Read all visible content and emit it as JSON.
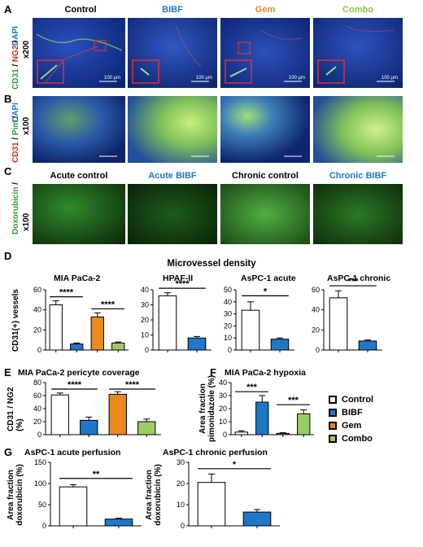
{
  "panels": {
    "A": "A",
    "B": "B",
    "C": "C",
    "D": "D",
    "E": "E",
    "F": "F",
    "G": "G"
  },
  "row_a": {
    "columns": [
      "Control",
      "BIBF",
      "Gem",
      "Combo"
    ],
    "column_colors": [
      "#000000",
      "#1f77c8",
      "#e8891e",
      "#8cc63f"
    ],
    "stain": [
      "CD31",
      "/",
      "NG2",
      "/",
      "DAPI",
      "x200"
    ],
    "scale_bars": [
      "100 μm",
      "100 μm",
      "100 μm",
      "100 μm"
    ]
  },
  "row_b": {
    "stain": [
      "CD31",
      "/",
      "Pim",
      "/",
      "DAPI",
      "x100"
    ]
  },
  "row_c": {
    "columns": [
      "Acute control",
      "Acute BIBF",
      "Chronic control",
      "Chronic BIBF"
    ],
    "column_colors": [
      "#000000",
      "#1f77c8",
      "#000000",
      "#1f77c8"
    ],
    "stain": [
      "Doxorubicin",
      "/",
      "x100"
    ]
  },
  "panel_d": {
    "title": "Microvessel density",
    "ylabel": "CD31(+) vessels"
  },
  "legend": {
    "items": [
      {
        "label": "Control",
        "color": "#ffffff"
      },
      {
        "label": "BIBF",
        "color": "#1f77c8"
      },
      {
        "label": "Gem",
        "color": "#e8891e"
      },
      {
        "label": "Combo",
        "color": "#9ccc65"
      }
    ]
  },
  "chart_data": [
    {
      "id": "d1",
      "type": "bar",
      "title": "MIA PaCa-2",
      "ylabel": "CD31(+) vessels",
      "categories": [
        "Control",
        "BIBF",
        "Gem",
        "Combo"
      ],
      "values": [
        45,
        6,
        33,
        7
      ],
      "errors": [
        4,
        1,
        4,
        1
      ],
      "ylim": [
        0,
        60
      ],
      "yticks": [
        0,
        20,
        40,
        60
      ],
      "colors": [
        "#ffffff",
        "#1f77c8",
        "#e8891e",
        "#9ccc65"
      ],
      "sig": [
        {
          "label": "****",
          "from": 0,
          "to": 1,
          "y": 53
        },
        {
          "label": "****",
          "from": 2,
          "to": 3,
          "y": 41
        }
      ]
    },
    {
      "id": "d2",
      "type": "bar",
      "title": "HPAF-II",
      "ylabel": "",
      "categories": [
        "Control",
        "BIBF"
      ],
      "values": [
        36,
        8
      ],
      "errors": [
        2,
        1
      ],
      "ylim": [
        0,
        40
      ],
      "yticks": [
        0,
        10,
        20,
        30,
        40
      ],
      "colors": [
        "#ffffff",
        "#1f77c8"
      ],
      "sig": [
        {
          "label": "****",
          "from": 0,
          "to": 1,
          "y": 41
        }
      ]
    },
    {
      "id": "d3",
      "type": "bar",
      "title": "AsPC-1 acute",
      "ylabel": "",
      "categories": [
        "Control",
        "BIBF"
      ],
      "values": [
        33,
        9
      ],
      "errors": [
        7,
        1
      ],
      "ylim": [
        0,
        50
      ],
      "yticks": [
        0,
        10,
        20,
        30,
        40,
        50
      ],
      "colors": [
        "#ffffff",
        "#1f77c8"
      ],
      "sig": [
        {
          "label": "*",
          "from": 0,
          "to": 1,
          "y": 45
        }
      ]
    },
    {
      "id": "d4",
      "type": "bar",
      "title": "AsPC-1 chronic",
      "ylabel": "",
      "categories": [
        "Control",
        "BIBF"
      ],
      "values": [
        52,
        9
      ],
      "errors": [
        7,
        1
      ],
      "ylim": [
        0,
        60
      ],
      "yticks": [
        0,
        20,
        40,
        60
      ],
      "colors": [
        "#ffffff",
        "#1f77c8"
      ],
      "sig": [
        {
          "label": "***",
          "from": 0,
          "to": 1,
          "y": 64
        }
      ]
    },
    {
      "id": "e",
      "type": "bar",
      "title": "MIA PaCa-2 pericyte coverage",
      "ylabel": "CD31 / NG2 (%)",
      "categories": [
        "Control",
        "BIBF",
        "Gem",
        "Combo"
      ],
      "values": [
        61,
        22,
        62,
        20
      ],
      "errors": [
        3,
        5,
        4,
        4
      ],
      "ylim": [
        0,
        80
      ],
      "yticks": [
        0,
        20,
        40,
        60,
        80
      ],
      "colors": [
        "#ffffff",
        "#1f77c8",
        "#e8891e",
        "#9ccc65"
      ],
      "sig": [
        {
          "label": "****",
          "from": 0,
          "to": 1,
          "y": 70
        },
        {
          "label": "****",
          "from": 2,
          "to": 3,
          "y": 70
        }
      ]
    },
    {
      "id": "f",
      "type": "bar",
      "title": "MIA PaCa-2 hypoxia",
      "ylabel": "Area fraction pimonidazole (%)",
      "categories": [
        "Control",
        "BIBF",
        "Gem",
        "Combo"
      ],
      "values": [
        2,
        25,
        1,
        16
      ],
      "errors": [
        1,
        5,
        0.5,
        3
      ],
      "ylim": [
        0,
        40
      ],
      "yticks": [
        0,
        10,
        20,
        30,
        40
      ],
      "colors": [
        "#ffffff",
        "#1f77c8",
        "#e8891e",
        "#9ccc65"
      ],
      "sig": [
        {
          "label": "***",
          "from": 0,
          "to": 1,
          "y": 33
        },
        {
          "label": "***",
          "from": 2,
          "to": 3,
          "y": 23
        }
      ]
    },
    {
      "id": "g1",
      "type": "bar",
      "title": "AsPC-1 acute perfusion",
      "ylabel": "Area fraction doxorubicin (%)",
      "categories": [
        "Control",
        "BIBF"
      ],
      "values": [
        92,
        16
      ],
      "errors": [
        5,
        2
      ],
      "ylim": [
        0,
        150
      ],
      "yticks": [
        0,
        50,
        100,
        150
      ],
      "colors": [
        "#ffffff",
        "#1f77c8"
      ],
      "sig": [
        {
          "label": "**",
          "from": 0,
          "to": 1,
          "y": 112
        }
      ]
    },
    {
      "id": "g2",
      "type": "bar",
      "title": "AsPC-1 chronic perfusion",
      "ylabel": "Area fraction doxorubicin (%)",
      "categories": [
        "Control",
        "BIBF"
      ],
      "values": [
        20.5,
        6.5
      ],
      "errors": [
        4,
        1.2
      ],
      "ylim": [
        0,
        30
      ],
      "yticks": [
        0,
        10,
        20,
        30
      ],
      "colors": [
        "#ffffff",
        "#1f77c8"
      ],
      "sig": [
        {
          "label": "*",
          "from": 0,
          "to": 1,
          "y": 27
        }
      ]
    }
  ]
}
